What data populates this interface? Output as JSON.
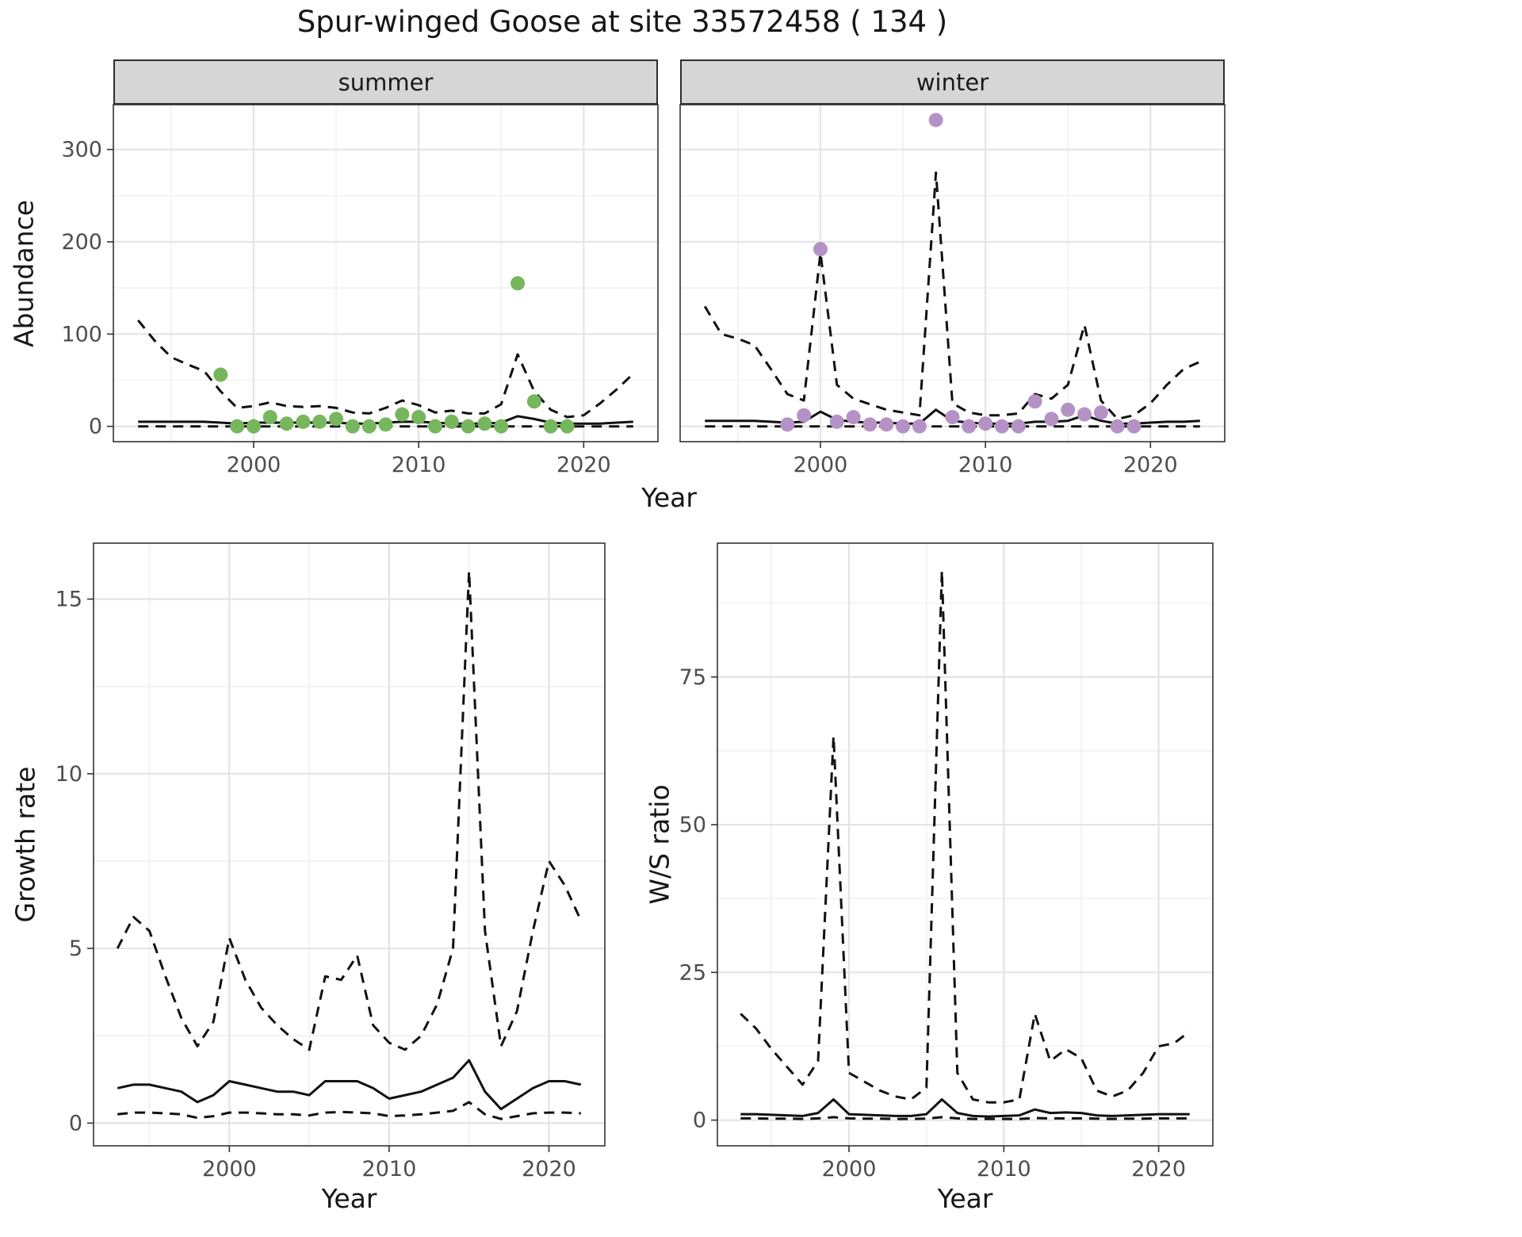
{
  "title": "Spur-winged Goose at site 33572458 ( 134 )",
  "style": {
    "point_green": "#76b65c",
    "point_purple": "#b592c6",
    "line_color": "#111111",
    "grid_major": "#e4e4e4",
    "grid_minor": "#f1f1f1",
    "panel_border": "#333333",
    "strip_bg": "#d6d6d6",
    "tick_text": "#4d4d4d"
  },
  "chart_data": [
    {
      "id": "abundance-by-season",
      "type": "line",
      "xlabel": "Year",
      "ylabel": "Abundance",
      "xlim": [
        1991.5,
        2024.5
      ],
      "ylim": [
        -16.6,
        348.6
      ],
      "xticks": [
        2000,
        2010,
        2020
      ],
      "xticks_minor": [
        1995,
        2005,
        2015
      ],
      "yticks": [
        0,
        100,
        200,
        300
      ],
      "yticks_minor": [
        50,
        150,
        250
      ],
      "grid": true,
      "legend": "none",
      "panels": [
        {
          "facet": "summer",
          "point_color": "#76b65c",
          "years": [
            1993,
            1994,
            1995,
            1996,
            1997,
            1998,
            1999,
            2000,
            2001,
            2002,
            2003,
            2004,
            2005,
            2006,
            2007,
            2008,
            2009,
            2010,
            2011,
            2012,
            2013,
            2014,
            2015,
            2016,
            2017,
            2018,
            2019,
            2020,
            2021,
            2022,
            2023
          ],
          "upper_ci": [
            115,
            93,
            75,
            67,
            60,
            38,
            20,
            22,
            26,
            22,
            21,
            22,
            20,
            15,
            14,
            20,
            28,
            23,
            15,
            17,
            14,
            14,
            24,
            78,
            38,
            18,
            10,
            12,
            25,
            40,
            57
          ],
          "median": [
            5,
            5,
            5,
            5,
            5,
            4,
            3,
            4,
            4,
            4,
            4,
            4,
            4,
            3,
            3,
            4,
            5,
            5,
            4,
            3,
            3,
            3,
            4,
            11,
            8,
            4,
            3,
            3,
            3,
            4,
            5
          ],
          "lower_ci": [
            0,
            0,
            0,
            0,
            0,
            0,
            0,
            0,
            0,
            0,
            0,
            0,
            0,
            0,
            0,
            0,
            0,
            0,
            0,
            0,
            0,
            0,
            0,
            0,
            0,
            0,
            0,
            0,
            0,
            0,
            0
          ],
          "observed_years": [
            1998,
            1999,
            2000,
            2001,
            2002,
            2003,
            2004,
            2005,
            2006,
            2007,
            2008,
            2009,
            2010,
            2011,
            2012,
            2013,
            2014,
            2015,
            2016,
            2017,
            2018,
            2019
          ],
          "observed_counts": [
            56,
            0,
            0,
            10,
            3,
            5,
            5,
            8,
            0,
            0,
            2,
            13,
            10,
            0,
            5,
            0,
            3,
            0,
            155,
            27,
            0,
            0
          ]
        },
        {
          "facet": "winter",
          "point_color": "#b592c6",
          "years": [
            1993,
            1994,
            1995,
            1996,
            1997,
            1998,
            1999,
            2000,
            2001,
            2002,
            2003,
            2004,
            2005,
            2006,
            2007,
            2008,
            2009,
            2010,
            2011,
            2012,
            2013,
            2014,
            2015,
            2016,
            2017,
            2018,
            2019,
            2020,
            2021,
            2022,
            2023
          ],
          "upper_ci": [
            130,
            100,
            95,
            88,
            62,
            35,
            28,
            188,
            45,
            30,
            24,
            18,
            15,
            12,
            275,
            25,
            15,
            12,
            12,
            14,
            35,
            30,
            45,
            110,
            28,
            8,
            12,
            25,
            45,
            62,
            70
          ],
          "median": [
            6,
            6,
            6,
            6,
            5,
            4,
            5,
            16,
            7,
            5,
            4,
            4,
            3,
            3,
            18,
            6,
            4,
            3,
            3,
            3,
            5,
            5,
            6,
            12,
            6,
            3,
            3,
            4,
            5,
            5,
            6
          ],
          "lower_ci": [
            0,
            0,
            0,
            0,
            0,
            0,
            0,
            0,
            0,
            0,
            0,
            0,
            0,
            0,
            0,
            0,
            0,
            0,
            0,
            0,
            0,
            0,
            0,
            0,
            0,
            0,
            0,
            0,
            0,
            0,
            0
          ],
          "observed_years": [
            1998,
            1999,
            2000,
            2001,
            2002,
            2003,
            2004,
            2005,
            2006,
            2007,
            2008,
            2009,
            2010,
            2011,
            2012,
            2013,
            2014,
            2015,
            2016,
            2017,
            2018,
            2019
          ],
          "observed_counts": [
            2,
            12,
            192,
            5,
            10,
            2,
            2,
            0,
            0,
            332,
            10,
            0,
            3,
            0,
            0,
            27,
            8,
            18,
            13,
            15,
            0,
            0
          ]
        }
      ]
    },
    {
      "id": "growth-rate",
      "type": "line",
      "xlabel": "Year",
      "ylabel": "Growth rate",
      "xlim": [
        1991.5,
        2023.5
      ],
      "ylim": [
        -0.65,
        16.6
      ],
      "xticks": [
        2000,
        2010,
        2020
      ],
      "xticks_minor": [
        1995,
        2005,
        2015
      ],
      "yticks": [
        0,
        5,
        10,
        15
      ],
      "yticks_minor": [
        2.5,
        7.5,
        12.5
      ],
      "grid": true,
      "years": [
        1993,
        1994,
        1995,
        1996,
        1997,
        1998,
        1999,
        2000,
        2001,
        2002,
        2003,
        2004,
        2005,
        2006,
        2007,
        2008,
        2009,
        2010,
        2011,
        2012,
        2013,
        2014,
        2015,
        2016,
        2017,
        2018,
        2019,
        2020,
        2021,
        2022
      ],
      "upper_ci": [
        5.0,
        5.9,
        5.5,
        4.2,
        3.0,
        2.2,
        2.9,
        5.3,
        4.1,
        3.3,
        2.8,
        2.4,
        2.1,
        4.2,
        4.1,
        4.8,
        2.8,
        2.3,
        2.1,
        2.5,
        3.4,
        5.0,
        15.8,
        5.5,
        2.2,
        3.2,
        5.5,
        7.5,
        6.8,
        5.8
      ],
      "median": [
        1.0,
        1.1,
        1.1,
        1.0,
        0.9,
        0.6,
        0.8,
        1.2,
        1.1,
        1.0,
        0.9,
        0.9,
        0.8,
        1.2,
        1.2,
        1.2,
        1.0,
        0.7,
        0.8,
        0.9,
        1.1,
        1.3,
        1.8,
        0.9,
        0.4,
        0.7,
        1.0,
        1.2,
        1.2,
        1.1
      ],
      "lower_ci": [
        0.25,
        0.3,
        0.3,
        0.28,
        0.25,
        0.15,
        0.2,
        0.3,
        0.3,
        0.28,
        0.25,
        0.25,
        0.22,
        0.3,
        0.32,
        0.3,
        0.28,
        0.2,
        0.22,
        0.25,
        0.3,
        0.35,
        0.6,
        0.25,
        0.12,
        0.2,
        0.28,
        0.3,
        0.3,
        0.28
      ]
    },
    {
      "id": "ws-ratio",
      "type": "line",
      "xlabel": "Year",
      "ylabel": "W/S ratio",
      "xlim": [
        1991.5,
        2023.5
      ],
      "ylim": [
        -4.35,
        97.65
      ],
      "xticks": [
        2000,
        2010,
        2020
      ],
      "xticks_minor": [
        1995,
        2005,
        2015
      ],
      "yticks": [
        0,
        25,
        50,
        75
      ],
      "yticks_minor": [
        12.5,
        37.5,
        62.5,
        87.5
      ],
      "grid": true,
      "years": [
        1993,
        1994,
        1995,
        1996,
        1997,
        1998,
        1999,
        2000,
        2001,
        2002,
        2003,
        2004,
        2005,
        2006,
        2007,
        2008,
        2009,
        2010,
        2011,
        2012,
        2013,
        2014,
        2015,
        2016,
        2017,
        2018,
        2019,
        2020,
        2021,
        2022
      ],
      "upper_ci": [
        18,
        15.5,
        12,
        9,
        6,
        10,
        65,
        8,
        6.5,
        5,
        4,
        3.5,
        5.5,
        93,
        8,
        3.5,
        3,
        3,
        3.5,
        18,
        10,
        12,
        10.5,
        5,
        4,
        5,
        8,
        12.5,
        13,
        15
      ],
      "median": [
        1.0,
        1.0,
        0.9,
        0.8,
        0.7,
        1.2,
        3.5,
        1.0,
        0.9,
        0.8,
        0.7,
        0.7,
        1.0,
        3.5,
        1.2,
        0.7,
        0.6,
        0.7,
        0.8,
        1.8,
        1.2,
        1.3,
        1.2,
        0.8,
        0.7,
        0.8,
        0.9,
        1.0,
        1.0,
        1.0
      ],
      "lower_ci": [
        0.3,
        0.3,
        0.25,
        0.25,
        0.2,
        0.3,
        0.5,
        0.3,
        0.25,
        0.25,
        0.2,
        0.2,
        0.25,
        0.5,
        0.3,
        0.2,
        0.2,
        0.2,
        0.2,
        0.35,
        0.3,
        0.3,
        0.3,
        0.25,
        0.2,
        0.25,
        0.25,
        0.3,
        0.3,
        0.3
      ]
    }
  ]
}
